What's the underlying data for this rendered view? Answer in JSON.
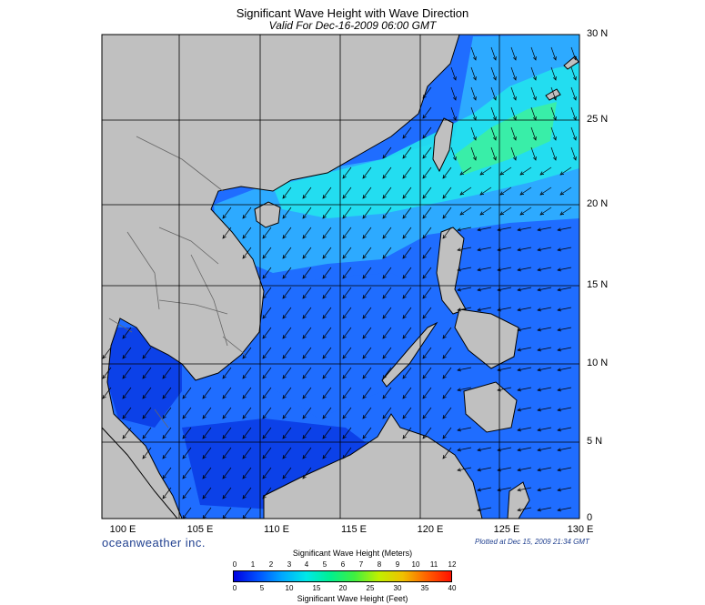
{
  "header": {
    "title": "Significant Wave Height with Wave Direction",
    "subtitle": "Valid For Dec-16-2009 06:00 GMT"
  },
  "map": {
    "lat_labels": [
      "30 N",
      "25 N",
      "20 N",
      "15 N",
      "10 N",
      "5 N",
      "0"
    ],
    "lon_labels": [
      "100 E",
      "105 E",
      "110 E",
      "115 E",
      "120 E",
      "125 E",
      "130 E"
    ],
    "colors": {
      "land": "#c0c0c0",
      "sea_deep": "#0a3ce6",
      "sea_mid": "#1f6dff",
      "sea_light": "#2fb0ff",
      "sea_cyan": "#22e2ee",
      "sea_green": "#3cf0a0",
      "arrow": "#000000"
    }
  },
  "footer": {
    "brand": "oceanweather inc.",
    "plotted": "Plotted at Dec 15, 2009 21:34 GMT"
  },
  "colorbar": {
    "title_meters": "Significant Wave Height (Meters)",
    "title_feet": "Significant Wave Height (Feet)",
    "meters_ticks": [
      "0",
      "1",
      "2",
      "3",
      "4",
      "5",
      "6",
      "7",
      "8",
      "9",
      "10",
      "11",
      "12"
    ],
    "feet_ticks": [
      "0",
      "5",
      "10",
      "15",
      "20",
      "25",
      "30",
      "35",
      "40"
    ],
    "gradient": [
      "#0000e0",
      "#0050ff",
      "#00a8ff",
      "#00e8e8",
      "#00f090",
      "#40f040",
      "#c0f000",
      "#f0c000",
      "#ff6000",
      "#ff1000"
    ]
  }
}
